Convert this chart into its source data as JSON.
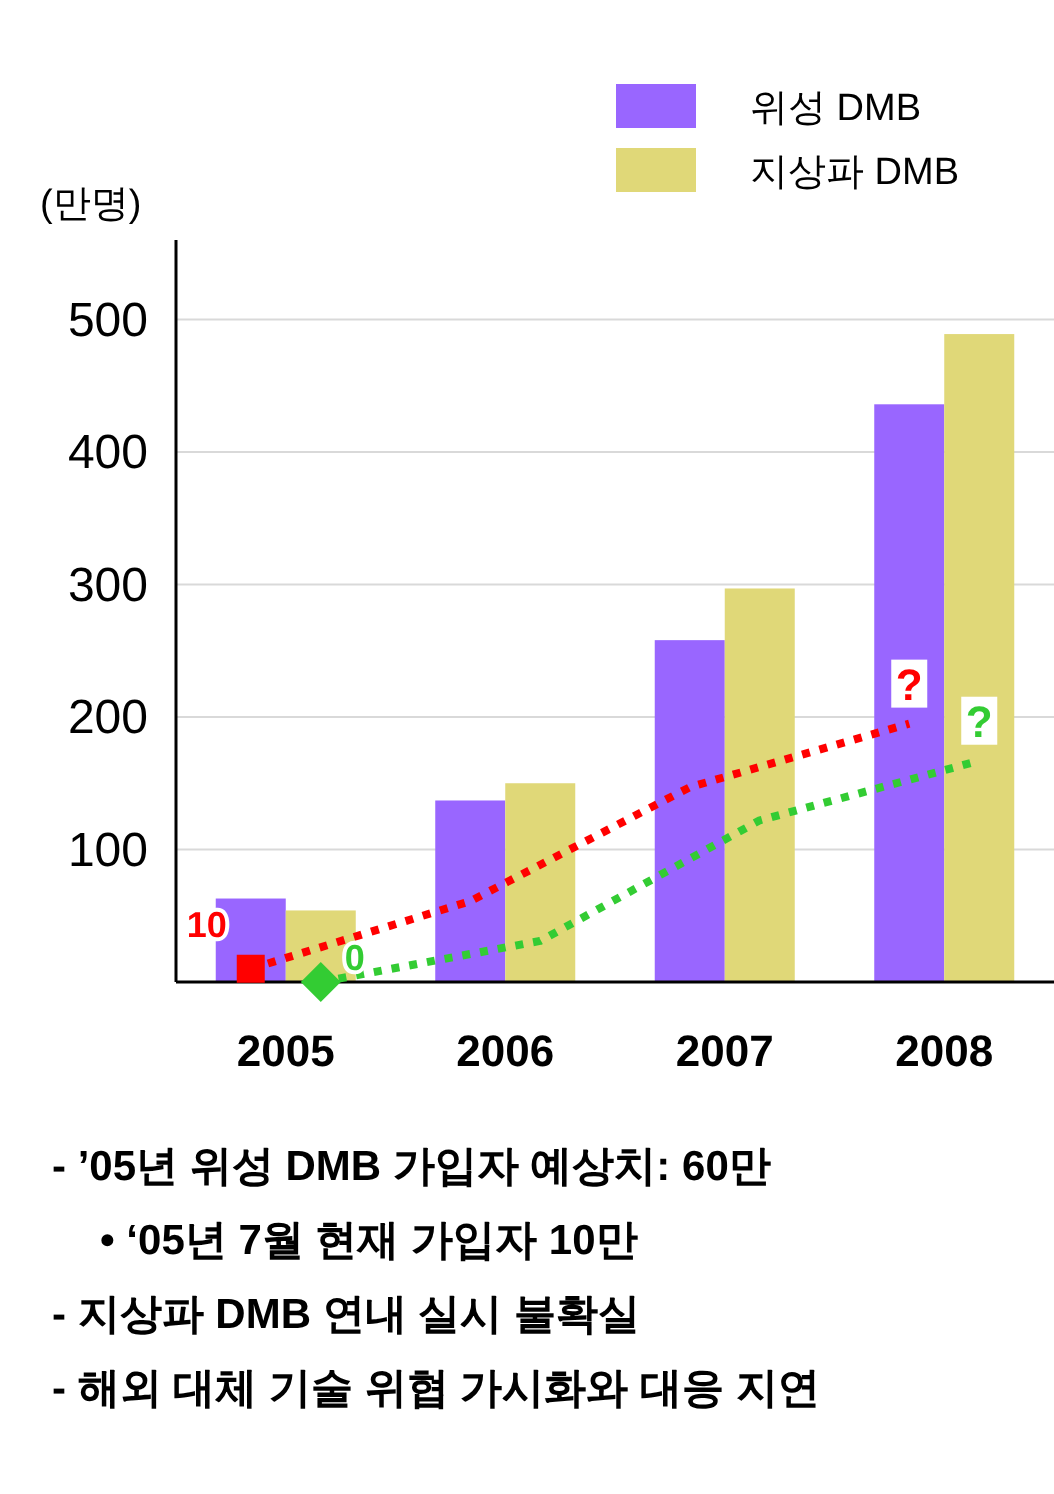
{
  "chart_data": {
    "type": "bar",
    "ylabel": "(만명)",
    "categories": [
      "2005",
      "2006",
      "2007",
      "2008"
    ],
    "series": [
      {
        "name": "위성 DMB",
        "color": "#9966ff",
        "values": [
          63,
          137,
          258,
          436
        ]
      },
      {
        "name": "지상파 DMB",
        "color": "#e0d878",
        "values": [
          54,
          150,
          297,
          489
        ]
      },
      {
        "type": "line",
        "color": "#ff0000",
        "line_style": "dotted",
        "values": [
          10,
          61,
          147,
          195
        ]
      },
      {
        "type": "line",
        "color": "#33cc33",
        "line_style": "dotted",
        "values": [
          0,
          31,
          122,
          167
        ]
      },
      {
        "type": "scatter",
        "color": "#ff0000",
        "marker": "square",
        "values": [
          10,
          null,
          null,
          null
        ],
        "value_labels": [
          "10",
          null,
          null,
          null
        ]
      },
      {
        "type": "scatter",
        "color": "#33cc33",
        "marker": "diamond",
        "values": [
          0,
          null,
          null,
          null
        ],
        "value_labels": [
          "0",
          null,
          null,
          null
        ]
      }
    ],
    "ylim": [
      0,
      560
    ],
    "yticks": [
      100,
      200,
      300,
      400,
      500
    ],
    "grid": "y",
    "legend": "top right",
    "annotations": [
      {
        "text": "?",
        "x": "2008",
        "y": 195
      },
      {
        "text": "?",
        "x": "2008",
        "y": 167
      },
      "- ’05년 위성 DMB 가입자 예상치: 60만",
      "• ‘05년 7월 현재 가입자 10만",
      "- 지상파 DMB 연내 실시 불확실",
      "- 해외 대체 기술 위협 가시화와 대응 지연"
    ]
  }
}
